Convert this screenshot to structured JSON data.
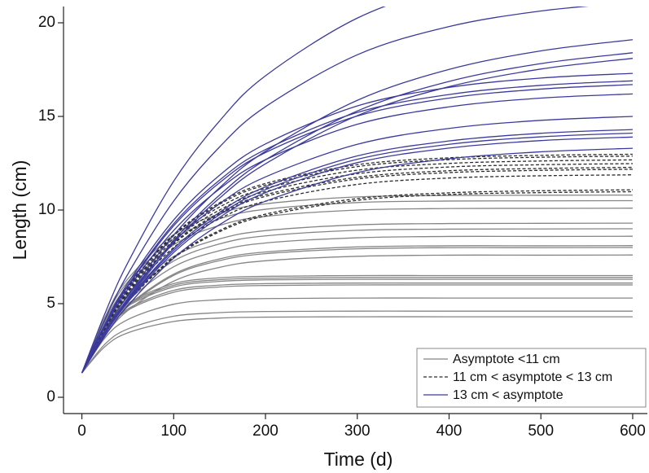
{
  "chart_data": {
    "type": "line",
    "xlabel": "Time (d)",
    "ylabel": "Length (cm)",
    "x": [
      0,
      25,
      50,
      100,
      150,
      200,
      300,
      400,
      500,
      600
    ],
    "xlim": [
      -20,
      616
    ],
    "ylim": [
      -0.87,
      20.87
    ],
    "xticks": [
      0,
      100,
      200,
      300,
      400,
      500,
      600
    ],
    "yticks": [
      0,
      5,
      10,
      15,
      20
    ],
    "legend": "lower right",
    "series": [
      {
        "name": "Asymptote <11 cm",
        "color": "#858585",
        "dash": "none",
        "curves": [
          [
            1.3,
            2.7,
            3.44,
            4.05,
            4.23,
            4.28,
            4.3,
            4.3,
            4.3,
            4.3
          ],
          [
            1.3,
            2.83,
            3.65,
            4.33,
            4.52,
            4.58,
            4.6,
            4.6,
            4.6,
            4.6
          ],
          [
            1.3,
            3.16,
            4.15,
            4.97,
            5.21,
            5.27,
            5.3,
            5.3,
            5.3,
            5.3
          ],
          [
            1.3,
            3.49,
            4.65,
            5.61,
            5.89,
            5.97,
            6.0,
            6.0,
            6.0,
            6.0
          ],
          [
            1.3,
            3.53,
            4.72,
            5.71,
            5.99,
            6.07,
            6.1,
            6.1,
            6.1,
            6.1
          ],
          [
            1.3,
            3.63,
            4.87,
            5.89,
            6.19,
            6.27,
            6.3,
            6.3,
            6.3,
            6.3
          ],
          [
            1.3,
            3.67,
            4.94,
            5.98,
            6.28,
            6.36,
            6.4,
            6.4,
            6.4,
            6.4
          ],
          [
            1.3,
            3.72,
            5.01,
            6.07,
            6.38,
            6.46,
            6.5,
            6.5,
            6.5,
            6.5
          ],
          [
            1.3,
            3.27,
            4.63,
            6.2,
            6.94,
            7.29,
            7.53,
            7.59,
            7.59,
            7.6
          ],
          [
            1.3,
            3.4,
            4.84,
            6.51,
            7.3,
            7.67,
            7.93,
            7.99,
            7.99,
            8.0
          ],
          [
            1.3,
            3.43,
            4.89,
            6.58,
            7.39,
            7.76,
            8.03,
            8.09,
            8.09,
            8.1
          ],
          [
            1.3,
            3.58,
            5.15,
            6.97,
            7.83,
            8.24,
            8.52,
            8.59,
            8.59,
            8.6
          ],
          [
            1.3,
            3.71,
            5.37,
            7.28,
            8.19,
            8.62,
            8.92,
            8.98,
            8.99,
            9.0
          ],
          [
            1.3,
            3.8,
            5.52,
            7.52,
            8.46,
            8.9,
            9.21,
            9.28,
            9.29,
            9.3
          ],
          [
            1.3,
            4.05,
            5.95,
            8.14,
            9.18,
            9.66,
            10.0,
            10.08,
            10.09,
            10.1
          ],
          [
            1.3,
            4.18,
            6.16,
            8.45,
            9.53,
            10.04,
            10.4,
            10.48,
            10.49,
            10.5
          ],
          [
            1.3,
            4.27,
            6.32,
            8.68,
            9.8,
            10.33,
            10.7,
            10.78,
            10.79,
            10.8
          ]
        ]
      },
      {
        "name": "11 cm < asymptote < 13 cm",
        "color": "#2a2a2a",
        "dash": "4 2.5",
        "curves": [
          [
            1.3,
            3.44,
            5.11,
            7.43,
            8.84,
            9.69,
            10.52,
            10.83,
            10.93,
            10.98
          ],
          [
            1.3,
            3.47,
            5.15,
            7.49,
            8.91,
            9.78,
            10.61,
            10.92,
            11.03,
            11.08
          ],
          [
            1.3,
            3.64,
            5.47,
            8.0,
            9.54,
            10.47,
            11.37,
            11.71,
            11.83,
            11.88
          ],
          [
            1.3,
            3.71,
            5.58,
            8.19,
            9.77,
            10.73,
            11.66,
            12.0,
            12.12,
            12.18
          ],
          [
            1.3,
            3.73,
            5.62,
            8.25,
            9.85,
            10.82,
            11.75,
            12.1,
            12.22,
            12.28
          ],
          [
            1.3,
            3.78,
            5.7,
            8.38,
            10.0,
            10.99,
            11.94,
            12.3,
            12.42,
            12.48
          ],
          [
            1.3,
            3.82,
            5.78,
            8.5,
            10.16,
            11.16,
            12.13,
            12.49,
            12.62,
            12.68
          ],
          [
            1.3,
            3.86,
            5.86,
            8.63,
            10.31,
            11.33,
            12.32,
            12.69,
            12.82,
            12.88
          ],
          [
            1.3,
            3.89,
            5.9,
            8.69,
            10.39,
            11.42,
            12.42,
            12.79,
            12.92,
            12.98
          ]
        ]
      },
      {
        "name": "13 cm < asymptote",
        "color": "#3b3a9c",
        "dash": "none",
        "curves": [
          [
            1.3,
            3.26,
            4.89,
            7.43,
            9.22,
            10.47,
            12.0,
            12.74,
            13.11,
            13.3
          ],
          [
            1.3,
            3.36,
            5.07,
            7.73,
            9.61,
            10.93,
            12.53,
            13.31,
            13.71,
            13.9
          ],
          [
            1.3,
            3.39,
            5.14,
            7.84,
            9.75,
            11.09,
            12.71,
            13.51,
            13.91,
            14.11
          ],
          [
            1.3,
            3.43,
            5.19,
            7.94,
            9.88,
            11.24,
            12.89,
            13.69,
            14.1,
            14.3
          ],
          [
            1.3,
            3.54,
            5.4,
            8.3,
            10.34,
            11.77,
            13.51,
            14.36,
            14.79,
            15.0
          ],
          [
            1.3,
            3.74,
            5.76,
            8.91,
            11.13,
            12.69,
            14.58,
            15.51,
            15.98,
            16.2
          ],
          [
            1.3,
            3.82,
            5.91,
            9.16,
            11.46,
            13.07,
            15.02,
            15.98,
            16.46,
            16.7
          ],
          [
            1.3,
            3.85,
            5.97,
            9.27,
            11.6,
            13.23,
            15.21,
            16.17,
            16.66,
            16.9
          ],
          [
            1.3,
            3.91,
            6.09,
            9.47,
            11.86,
            13.53,
            15.56,
            16.55,
            17.05,
            17.3
          ],
          [
            1.3,
            3.39,
            5.21,
            8.25,
            10.64,
            12.47,
            15.04,
            16.59,
            17.53,
            18.1
          ],
          [
            1.3,
            3.42,
            5.28,
            8.37,
            10.8,
            12.68,
            15.29,
            16.87,
            17.82,
            18.4
          ],
          [
            1.3,
            3.51,
            5.44,
            8.66,
            11.19,
            13.14,
            15.86,
            17.51,
            18.5,
            19.1
          ],
          [
            1.3,
            4.13,
            6.57,
            10.48,
            13.37,
            15.52,
            18.29,
            19.8,
            20.63,
            21.1
          ],
          [
            1.3,
            4.46,
            7.18,
            11.54,
            14.76,
            17.17,
            20.25,
            21.93,
            22.87,
            23.39
          ]
        ]
      }
    ]
  }
}
